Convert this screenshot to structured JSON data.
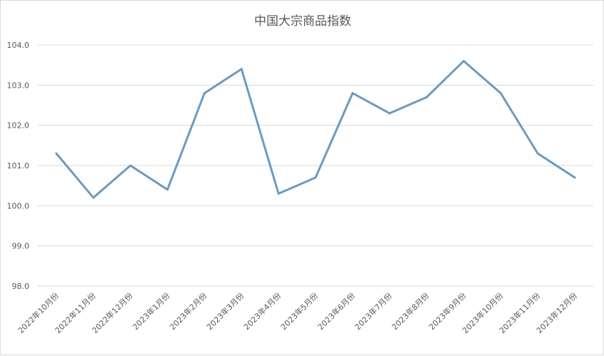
{
  "chart_data": {
    "type": "line",
    "title": "中国大宗商品指数",
    "xlabel": "",
    "ylabel": "",
    "categories": [
      "2022年10月份",
      "2022年11月份",
      "2022年12月份",
      "2023年1月份",
      "2023年2月份",
      "2023年3月份",
      "2023年4月份",
      "2023年5月份",
      "2023年6月份",
      "2023年7月份",
      "2023年8月份",
      "2023年9月份",
      "2023年10月份",
      "2023年11月份",
      "2023年12月份"
    ],
    "series": [
      {
        "values": [
          101.3,
          100.2,
          101.0,
          100.4,
          102.8,
          103.4,
          100.3,
          100.7,
          102.8,
          102.3,
          102.7,
          103.6,
          102.8,
          101.3,
          100.7
        ],
        "color": "#6a9bc3"
      }
    ],
    "ylim": [
      98.0,
      104.0
    ],
    "yticks": [
      "98.0",
      "99.0",
      "100.0",
      "101.0",
      "102.0",
      "103.0",
      "104.0"
    ],
    "grid": true,
    "legend": "none"
  }
}
